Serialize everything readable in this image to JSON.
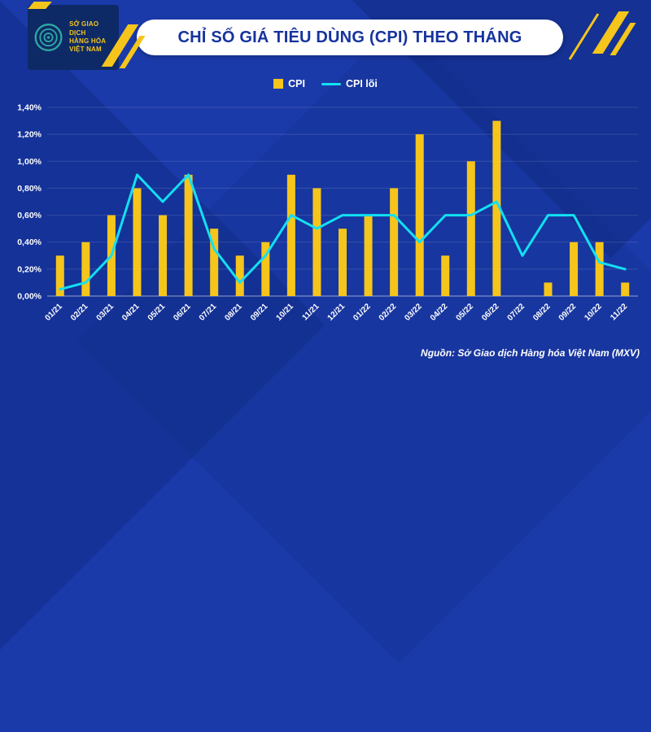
{
  "logo": {
    "org_lines": [
      "SỞ GIAO DỊCH",
      "HÀNG HÓA",
      "VIỆT NAM"
    ]
  },
  "header": {
    "title": "CHỈ SỐ GIÁ TIÊU DÙNG (CPI) THEO THÁNG"
  },
  "legend": [
    {
      "label": "CPI",
      "type": "bar",
      "color": "#F5C51C"
    },
    {
      "label": "CPI lõi",
      "type": "line",
      "color": "#12E0F2"
    }
  ],
  "source": "Nguồn: Sở Giao dịch Hàng hóa Việt Nam (MXV)",
  "colors": {
    "background": "#1B3AA9",
    "bar": "#F5C51C",
    "line": "#12E0F2",
    "title_text": "#16339E",
    "accent_yellow": "#F5C51C",
    "logo_bg": "#0D2A66",
    "logo_ring": "#2FA8A0"
  },
  "chart_data": {
    "type": "bar",
    "title": "CHỈ SỐ GIÁ TIÊU DÙNG (CPI) THEO THÁNG",
    "categories": [
      "01/21",
      "02/21",
      "03/21",
      "04/21",
      "05/21",
      "06/21",
      "07/21",
      "08/21",
      "09/21",
      "10/21",
      "11/21",
      "12/21",
      "01/22",
      "02/22",
      "03/22",
      "04/22",
      "05/22",
      "06/22",
      "07/22",
      "08/22",
      "09/22",
      "10/22",
      "11/22"
    ],
    "series": [
      {
        "name": "CPI",
        "type": "bar",
        "color": "#F5C51C",
        "values": [
          0.3,
          0.4,
          0.6,
          0.8,
          0.6,
          0.9,
          0.5,
          0.3,
          0.4,
          0.9,
          0.8,
          0.5,
          0.6,
          0.8,
          1.2,
          0.3,
          1.0,
          1.3,
          0.0,
          0.1,
          0.4,
          0.4,
          0.1
        ]
      },
      {
        "name": "CPI lõi",
        "type": "line",
        "color": "#12E0F2",
        "values": [
          0.05,
          0.1,
          0.3,
          0.9,
          0.7,
          0.9,
          0.35,
          0.1,
          0.3,
          0.6,
          0.5,
          0.6,
          0.6,
          0.6,
          0.4,
          0.6,
          0.6,
          0.7,
          0.3,
          0.6,
          0.6,
          0.25,
          0.2
        ]
      }
    ],
    "xlabel": "",
    "ylabel": "",
    "ylim": [
      0,
      1.4
    ],
    "ytick_step": 0.2,
    "ytick_labels": [
      "0,00%",
      "0,20%",
      "0,40%",
      "0,60%",
      "0,80%",
      "1,00%",
      "1,20%",
      "1,40%"
    ],
    "grid": "faint horizontal",
    "legend_position": "top-center"
  }
}
